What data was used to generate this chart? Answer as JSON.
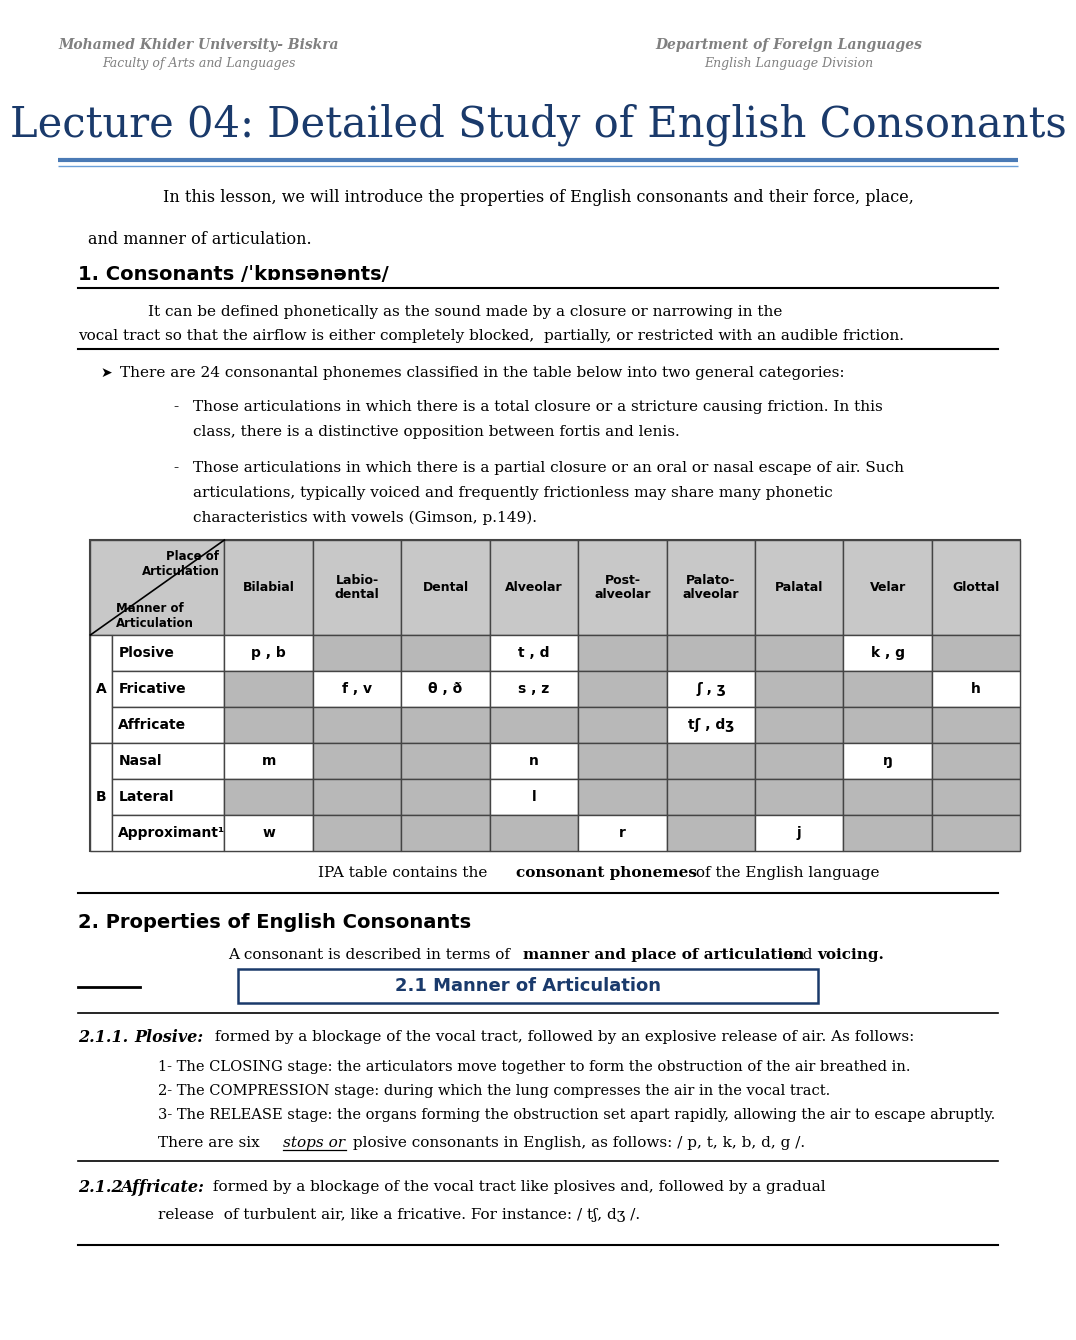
{
  "header_left_line1": "Mohamed Khider University- Biskra",
  "header_left_line2": "Faculty of Arts and Languages",
  "header_right_line1": "Department of Foreign Languages",
  "header_right_line2": "English Language Division",
  "title": "Lecture 04: Detailed Study of English Consonants",
  "intro_line1": "In this lesson, we will introduce the properties of English consonants and their force, place,",
  "intro_line2": "and manner of articulation.",
  "section1_heading": "1. Consonants /ˈkɒnsənənts/",
  "section1_def1": "It can be defined phonetically as the sound made by a closure or narrowing in the",
  "section1_def2": "vocal tract so that the airflow is either completely blocked,  partially, or restricted with an audible friction.",
  "bullet1": "There are 24 consonantal phonemes classified in the table below into two general categories:",
  "dash1_line1": "Those articulations in which there is a total closure or a stricture causing friction. In this",
  "dash1_line2": "class, there is a distinctive opposition between fortis and lenis.",
  "dash2_line1": "Those articulations in which there is a partial closure or an oral or nasal escape of air. Such",
  "dash2_line2": "articulations, typically voiced and frequently frictionless may share many phonetic",
  "dash2_line3": "characteristics with vowels (Gimson, p.149).",
  "table_caption": "IPA table contains the consonant phonemes of the English language",
  "table_caption_bold": "consonant phonemes",
  "section2_heading": "2. Properties of English Consonants",
  "subsection_heading": "2.1 Manner of Articulation",
  "s211_text": " formed by a blockage of the vocal tract, followed by an explosive release of air. As follows:",
  "s211_item1": "1- The CLOSING stage: the articulators move together to form the obstruction of the air breathed in.",
  "s211_item2": "2- The COMPRESSION stage: during which the lung compresses the air in the vocal tract.",
  "s211_item3": "3- The RELEASE stage: the organs forming the obstruction set apart rapidly, allowing the air to escape abruptly.",
  "s212_text": " formed by a blockage of the vocal tract like plosives and, followed by a gradual",
  "s212_text2": "release  of turbulent air, like a fricative. For instance: / tʃ, dʒ /.",
  "bg_color": "#ffffff",
  "header_color": "#808080",
  "title_color": "#1a3a6b",
  "divider_color1": "#4a7ab5",
  "divider_color2": "#6a9fd8",
  "text_color": "#000000",
  "table_header_bg": "#c8c8c8",
  "table_data_bg_gray": "#b8b8b8",
  "table_border_color": "#444444",
  "subsection_box_border": "#1a3a6b",
  "subsection_box_text": "#1a3a6b",
  "table_col_headers": [
    "Bilabial",
    "Labio-\ndental",
    "Dental",
    "Alveolar",
    "Post-\nalveolar",
    "Palato-\nalveolar",
    "Palatal",
    "Velar",
    "Glottal"
  ],
  "table_row_headers": [
    "Plosive",
    "Fricative",
    "Affricate",
    "Nasal",
    "Lateral",
    "Approximant¹"
  ],
  "table_data": [
    [
      "p , b",
      "",
      "",
      "t , d",
      "",
      "",
      "",
      "k , g",
      ""
    ],
    [
      "",
      "f , v",
      "θ , ð",
      "s , z",
      "",
      "ʃ , ʒ",
      "",
      "",
      "h"
    ],
    [
      "",
      "",
      "",
      "",
      "",
      "tʃ , dʒ",
      "",
      "",
      ""
    ],
    [
      "m",
      "",
      "",
      "n",
      "",
      "",
      "",
      "ŋ",
      ""
    ],
    [
      "",
      "",
      "",
      "l",
      "",
      "",
      "",
      "",
      ""
    ],
    [
      "w",
      "",
      "",
      "",
      "r",
      "",
      "j",
      "",
      ""
    ]
  ]
}
